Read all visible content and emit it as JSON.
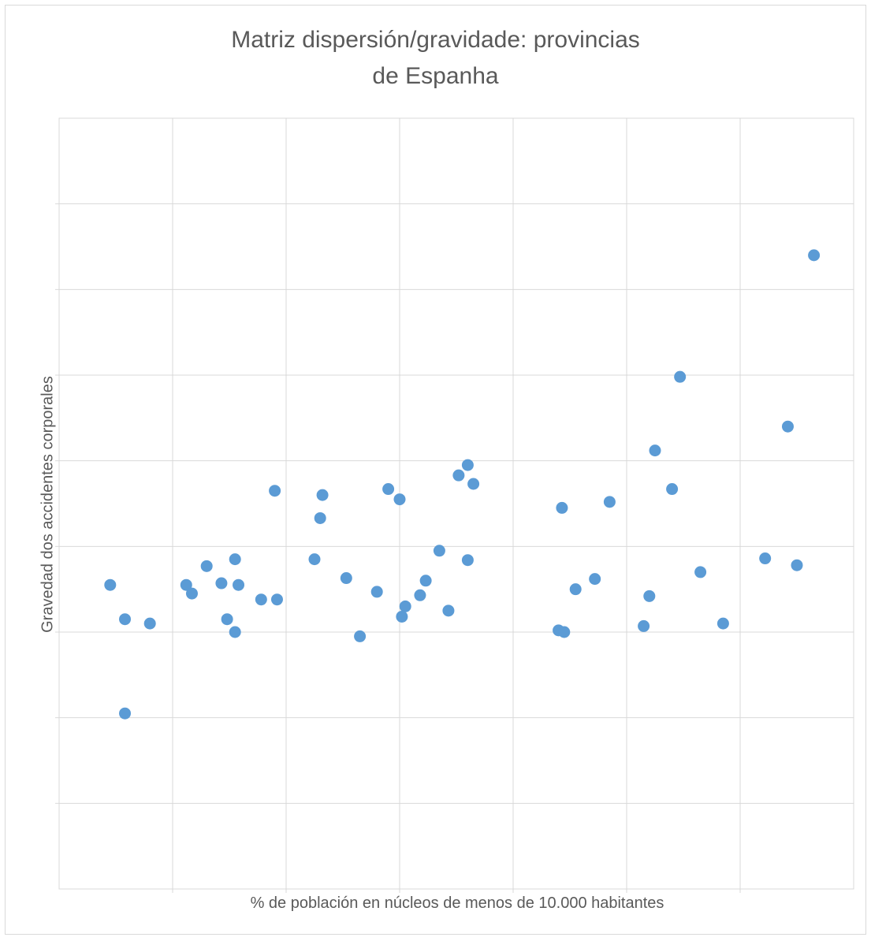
{
  "chart_data": {
    "type": "scatter",
    "title_line1": "Matriz dispersión/gravidade: provincias",
    "title_line2": "de Espanha",
    "xlabel": "% de población en núcleos de menos de 10.000 habitantes",
    "ylabel": "Gravedad dos accidentes corporales",
    "xlim": [
      0,
      7
    ],
    "ylim": [
      0,
      9
    ],
    "grid": true,
    "point_color": "#5b9bd5",
    "x": [
      0.45,
      0.58,
      0.8,
      0.58,
      1.12,
      1.17,
      1.3,
      1.43,
      1.48,
      1.55,
      1.58,
      1.55,
      1.78,
      1.9,
      1.92,
      2.25,
      2.3,
      2.32,
      2.53,
      2.65,
      2.8,
      2.9,
      3.0,
      3.02,
      3.05,
      3.18,
      3.23,
      3.35,
      3.43,
      3.52,
      3.6,
      3.6,
      3.65,
      4.4,
      4.43,
      4.45,
      4.55,
      4.72,
      4.85,
      5.15,
      5.2,
      5.25,
      5.4,
      5.47,
      5.65,
      5.85,
      6.22,
      6.42,
      6.5,
      6.65
    ],
    "y": [
      3.55,
      3.15,
      3.1,
      2.05,
      3.55,
      3.45,
      3.77,
      3.57,
      3.15,
      3.85,
      3.55,
      3.0,
      3.38,
      4.65,
      3.38,
      3.85,
      4.33,
      4.6,
      3.63,
      2.95,
      3.47,
      4.67,
      4.55,
      3.18,
      3.3,
      3.43,
      3.6,
      3.95,
      3.25,
      4.83,
      3.84,
      4.95,
      4.73,
      3.02,
      4.45,
      3.0,
      3.5,
      3.62,
      4.52,
      3.07,
      3.42,
      5.12,
      4.67,
      5.98,
      3.7,
      3.1,
      3.86,
      5.4,
      3.78,
      7.4
    ]
  }
}
